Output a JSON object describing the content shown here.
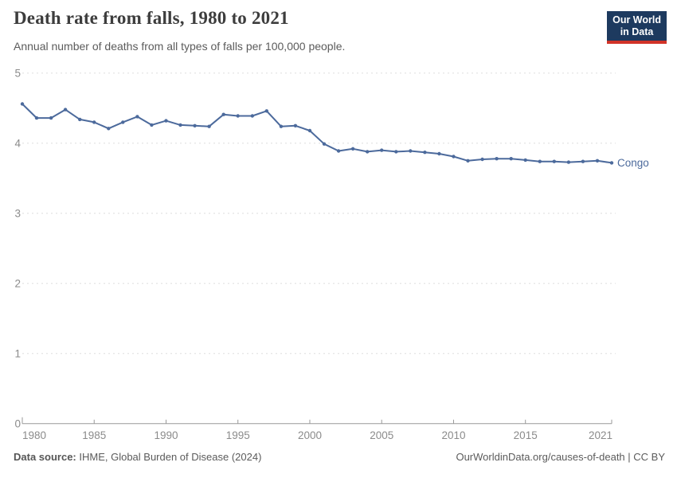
{
  "header": {
    "title": "Death rate from falls, 1980 to 2021",
    "subtitle": "Annual number of deaths from all types of falls per 100,000 people.",
    "logo": {
      "line1": "Our World",
      "line2": "in Data"
    }
  },
  "chart_data": {
    "type": "line",
    "title": "Death rate from falls, 1980 to 2021",
    "xlabel": "",
    "ylabel": "",
    "xlim": [
      1980,
      2021
    ],
    "ylim": [
      0,
      5
    ],
    "grid": "horizontal-dashed",
    "legend_position": "end-of-line-label",
    "x_ticks": [
      1980,
      1985,
      1990,
      1995,
      2000,
      2005,
      2010,
      2015,
      2021
    ],
    "y_ticks": [
      0,
      1,
      2,
      3,
      4,
      5
    ],
    "series": [
      {
        "name": "Congo",
        "color": "#4C6A9C",
        "x": [
          1980,
          1981,
          1982,
          1983,
          1984,
          1985,
          1986,
          1987,
          1988,
          1989,
          1990,
          1991,
          1992,
          1993,
          1994,
          1995,
          1996,
          1997,
          1998,
          1999,
          2000,
          2001,
          2002,
          2003,
          2004,
          2005,
          2006,
          2007,
          2008,
          2009,
          2010,
          2011,
          2012,
          2013,
          2014,
          2015,
          2016,
          2017,
          2018,
          2019,
          2020,
          2021
        ],
        "values": [
          4.56,
          4.36,
          4.36,
          4.48,
          4.34,
          4.3,
          4.21,
          4.3,
          4.38,
          4.26,
          4.32,
          4.26,
          4.25,
          4.24,
          4.41,
          4.39,
          4.39,
          4.46,
          4.24,
          4.25,
          4.18,
          3.99,
          3.89,
          3.92,
          3.88,
          3.9,
          3.88,
          3.89,
          3.87,
          3.85,
          3.81,
          3.75,
          3.77,
          3.78,
          3.78,
          3.76,
          3.74,
          3.74,
          3.73,
          3.74,
          3.75,
          3.72
        ]
      }
    ]
  },
  "footer": {
    "source_label": "Data source:",
    "source_text": " IHME, Global Burden of Disease (2024)",
    "credit": "OurWorldinData.org/causes-of-death | CC BY"
  },
  "colors": {
    "series_blue": "#4C6A9C",
    "gridline": "#dedede",
    "axis": "#999999",
    "tick_label": "#8b8b8b",
    "logo_navy": "#1d3a5f",
    "logo_red": "#d13328",
    "title_text": "#3d3d3d",
    "muted_text": "#5b5b5b"
  }
}
